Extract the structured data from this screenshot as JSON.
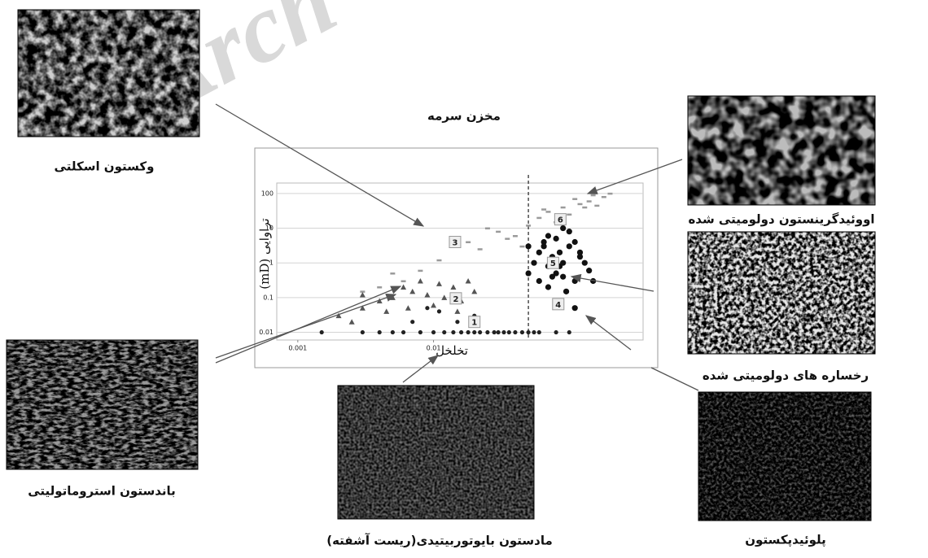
{
  "watermark": "Arch",
  "panels": [
    {
      "label": "وکستون اسکلتی"
    },
    {
      "label": "اووئیدگرینستون دولومیتی شده"
    },
    {
      "label": "رخساره های دولومیتی شده"
    },
    {
      "label": "پلوئیدپکستون"
    },
    {
      "label": "مادستون بایوتوربیتیدی(ریست آشفته)"
    },
    {
      "label": "باندستون استروماتولیتی"
    }
  ],
  "chart_data": {
    "type": "scatter",
    "title": "مخزن سرمه",
    "x_label": "تخلخل",
    "y_label": "تراوایی (mD)",
    "log_x": true,
    "log_y": true,
    "grid": true,
    "xlim": [
      0.0007,
      0.35
    ],
    "ylim": [
      0.006,
      200
    ],
    "xticks": [
      0.001,
      0.01
    ],
    "yticks": [
      0.01,
      0.1,
      1,
      10,
      100
    ],
    "vline": 0.05,
    "annotations": [
      {
        "text": "1",
        "x": 0.02,
        "y": 0.02
      },
      {
        "text": "2",
        "x": 0.0146,
        "y": 0.095
      },
      {
        "text": "3",
        "x": 0.0144,
        "y": 4
      },
      {
        "text": "4",
        "x": 0.083,
        "y": 0.065
      },
      {
        "text": "5",
        "x": 0.076,
        "y": 1
      },
      {
        "text": "6",
        "x": 0.086,
        "y": 18
      }
    ],
    "series": [
      {
        "color": "#9a9a9a",
        "marker": "dash",
        "x": [
          0.006,
          0.008,
          0.011,
          0.014,
          0.018,
          0.022,
          0.03,
          0.04,
          0.05,
          0.06,
          0.07,
          0.08,
          0.09,
          0.1,
          0.12,
          0.14,
          0.16,
          0.18,
          0.2,
          0.025,
          0.035,
          0.045,
          0.065,
          0.085,
          0.11,
          0.13,
          0.15,
          0.003,
          0.004,
          0.005
        ],
        "values": [
          0.3,
          0.6,
          1.2,
          3,
          4,
          2.5,
          8,
          6,
          12,
          20,
          30,
          15,
          40,
          25,
          50,
          60,
          45,
          80,
          100,
          10,
          5,
          3,
          35,
          20,
          70,
          40,
          90,
          0.15,
          0.2,
          0.5
        ]
      },
      {
        "color": "#555555",
        "marker": "triangle",
        "x": [
          0.002,
          0.003,
          0.004,
          0.005,
          0.006,
          0.007,
          0.008,
          0.009,
          0.01,
          0.012,
          0.014,
          0.016,
          0.018,
          0.02,
          0.0025,
          0.0045,
          0.0065,
          0.011,
          0.015,
          0.003
        ],
        "values": [
          0.03,
          0.05,
          0.08,
          0.1,
          0.2,
          0.15,
          0.3,
          0.12,
          0.06,
          0.1,
          0.2,
          0.08,
          0.3,
          0.15,
          0.02,
          0.04,
          0.05,
          0.25,
          0.04,
          0.12
        ]
      },
      {
        "color": "#111111",
        "marker": "dot",
        "x": [
          0.05,
          0.055,
          0.06,
          0.065,
          0.07,
          0.075,
          0.08,
          0.085,
          0.09,
          0.1,
          0.11,
          0.12,
          0.13,
          0.14,
          0.06,
          0.07,
          0.08,
          0.09,
          0.1,
          0.11,
          0.05,
          0.065,
          0.075,
          0.085,
          0.095,
          0.12,
          0.15,
          0.07,
          0.09,
          0.11
        ],
        "values": [
          0.5,
          1,
          2,
          3,
          0.8,
          1.5,
          5,
          2,
          1,
          3,
          4,
          2,
          1,
          0.6,
          0.3,
          0.2,
          0.5,
          0.4,
          8,
          0.3,
          3,
          4,
          0.4,
          0.8,
          0.15,
          1.5,
          0.3,
          6,
          10,
          0.05
        ]
      },
      {
        "color": "#222222",
        "marker": "small-dot",
        "x": [
          0.0015,
          0.003,
          0.004,
          0.005,
          0.006,
          0.008,
          0.01,
          0.012,
          0.014,
          0.016,
          0.018,
          0.02,
          0.022,
          0.025,
          0.028,
          0.03,
          0.033,
          0.036,
          0.04,
          0.045,
          0.05,
          0.055,
          0.06,
          0.02,
          0.015,
          0.011,
          0.009,
          0.007,
          0.08,
          0.1
        ],
        "values": [
          0.01,
          0.01,
          0.01,
          0.01,
          0.01,
          0.01,
          0.01,
          0.01,
          0.01,
          0.01,
          0.01,
          0.01,
          0.01,
          0.01,
          0.01,
          0.01,
          0.01,
          0.01,
          0.01,
          0.01,
          0.01,
          0.01,
          0.01,
          0.03,
          0.02,
          0.04,
          0.05,
          0.02,
          0.01,
          0.01
        ]
      }
    ]
  }
}
